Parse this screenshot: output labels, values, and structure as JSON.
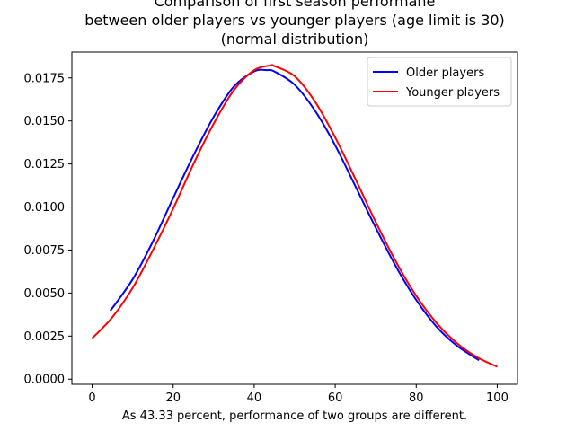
{
  "chart_data": {
    "type": "line",
    "title_lines": [
      "Comparison of first season performane",
      "between older players vs younger players (age limit is 30)",
      "(normal distribution)"
    ],
    "xlabel": "As 43.33 percent, performance of two groups are different.",
    "ylabel": "",
    "xlim": [
      -5,
      105
    ],
    "ylim": [
      -0.0003,
      0.019
    ],
    "xticks": [
      0,
      20,
      40,
      60,
      80,
      100
    ],
    "xtick_labels": [
      "0",
      "20",
      "40",
      "60",
      "80",
      "100"
    ],
    "yticks": [
      0,
      0.0025,
      0.005,
      0.0075,
      0.01,
      0.0125,
      0.015,
      0.0175
    ],
    "ytick_labels": [
      "0.0000",
      "0.0025",
      "0.0050",
      "0.0075",
      "0.0100",
      "0.0125",
      "0.0150",
      "0.0175"
    ],
    "grid": false,
    "legend_position": "top-right",
    "series": [
      {
        "name": "Older players",
        "color": "#0000ff",
        "x": [
          4.5,
          10,
          15,
          20,
          25,
          30,
          35,
          40,
          43,
          45,
          50,
          55,
          60,
          65,
          70,
          75,
          80,
          85,
          90,
          95.5
        ],
        "y": [
          0.00397,
          0.0058,
          0.008,
          0.01052,
          0.01299,
          0.01524,
          0.017,
          0.01788,
          0.01795,
          0.01787,
          0.0171,
          0.0156,
          0.01358,
          0.0112,
          0.0088,
          0.00654,
          0.0046,
          0.00305,
          0.00195,
          0.0011
        ]
      },
      {
        "name": "Younger players",
        "color": "#ff0000",
        "x": [
          0,
          5,
          10,
          15,
          20,
          25,
          30,
          35,
          40,
          44,
          45,
          50,
          55,
          60,
          65,
          70,
          75,
          80,
          85,
          90,
          95,
          100
        ],
        "y": [
          0.00237,
          0.0036,
          0.0053,
          0.0075,
          0.0099,
          0.01249,
          0.01484,
          0.01679,
          0.01795,
          0.01822,
          0.01819,
          0.0176,
          0.01613,
          0.01404,
          0.01162,
          0.00913,
          0.00682,
          0.00484,
          0.00327,
          0.0021,
          0.00128,
          0.00072
        ]
      }
    ]
  }
}
